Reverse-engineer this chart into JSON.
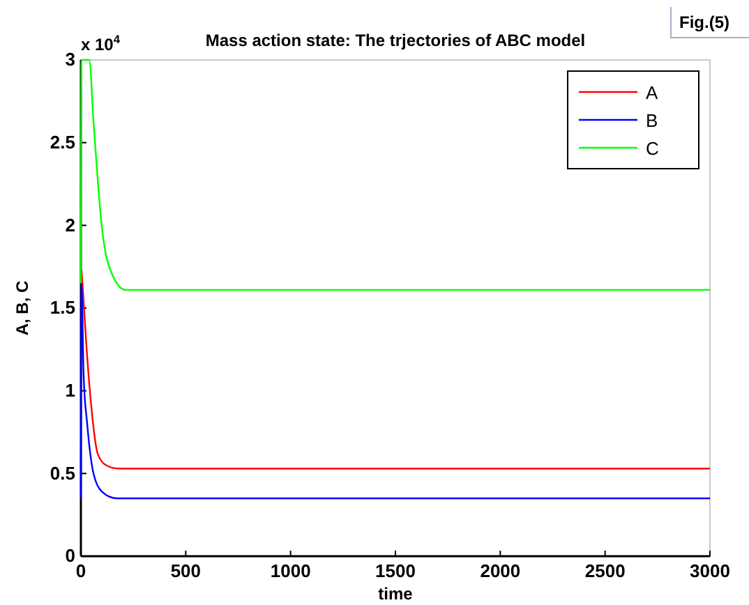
{
  "chart_data": {
    "type": "line",
    "title": "Mass action state: The trjectories of ABC model",
    "xlabel": "time",
    "ylabel": "A, B, C",
    "annotations": [
      "x 10$^{4}$",
      "Fig.(5)"
    ],
    "xlim": [
      0,
      3000
    ],
    "ylim": [
      0,
      3
    ],
    "xticks": [
      0,
      500,
      1000,
      1500,
      2000,
      2500,
      3000
    ],
    "yticks": [
      0,
      0.5,
      1,
      1.5,
      2,
      2.5,
      3
    ],
    "grid": false,
    "legend": "top right",
    "line_style": "solid",
    "marker": "none",
    "series": [
      {
        "name": "A",
        "color": "#ff0000",
        "x": [
          3,
          10,
          27,
          50,
          80,
          120,
          180,
          3000
        ],
        "values": [
          1.73,
          1.6,
          1.26,
          0.9,
          0.62,
          0.55,
          0.53,
          0.53
        ]
      },
      {
        "name": "B",
        "color": "#0000ff",
        "x": [
          0,
          3,
          13,
          30,
          60,
          100,
          170,
          3000
        ],
        "values": [
          0.35,
          1.65,
          1.09,
          0.8,
          0.5,
          0.39,
          0.35,
          0.35
        ]
      },
      {
        "name": "C",
        "color": "#00ff00",
        "x": [
          0,
          3,
          40,
          60,
          100,
          150,
          213,
          3000
        ],
        "values": [
          1.65,
          3,
          3,
          2.63,
          1.99,
          1.7,
          1.61,
          1.61
        ]
      }
    ]
  }
}
